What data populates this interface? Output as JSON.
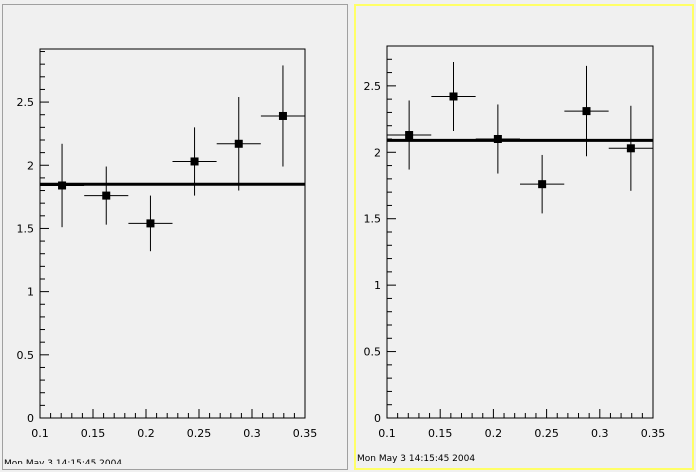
{
  "canvas": {
    "left_pad_timestamp": "Mon May 3 14:15:45 2004",
    "right_pad_timestamp": "Mon May  3 14:15:45 2004"
  },
  "chart_data": [
    {
      "type": "scatter",
      "title": "",
      "xlabel": "",
      "ylabel": "",
      "xlim": [
        0.1,
        0.35
      ],
      "ylim": [
        0,
        2.92
      ],
      "x_ticks": [
        "0.1",
        "0.15",
        "0.2",
        "0.25",
        "0.3",
        "0.35"
      ],
      "y_ticks": [
        "0",
        "0.5",
        "1",
        "1.5",
        "2",
        "2.5"
      ],
      "series": [
        {
          "marker": "square",
          "color": "#000000",
          "x": [
            0.1208,
            0.1625,
            0.2042,
            0.2458,
            0.2875,
            0.3292
          ],
          "y": [
            1.84,
            1.76,
            1.54,
            2.03,
            2.17,
            2.39
          ],
          "x_err": [
            0.0208,
            0.0208,
            0.0208,
            0.0208,
            0.0208,
            0.0208
          ],
          "y_err": [
            0.33,
            0.23,
            0.22,
            0.27,
            0.37,
            0.4
          ]
        }
      ],
      "fit_line": {
        "y": 1.85,
        "color": "#000000"
      }
    },
    {
      "type": "scatter",
      "title": "",
      "xlabel": "",
      "ylabel": "",
      "xlim": [
        0.1,
        0.35
      ],
      "ylim": [
        0,
        2.8
      ],
      "x_ticks": [
        "0.1",
        "0.15",
        "0.2",
        "0.25",
        "0.3",
        "0.35"
      ],
      "y_ticks": [
        "0",
        "0.5",
        "1",
        "1.5",
        "2",
        "2.5"
      ],
      "series": [
        {
          "marker": "square",
          "color": "#000000",
          "x": [
            0.1208,
            0.1625,
            0.2042,
            0.2458,
            0.2875,
            0.3292
          ],
          "y": [
            2.13,
            2.42,
            2.1,
            1.76,
            2.31,
            2.03
          ],
          "x_err": [
            0.0208,
            0.0208,
            0.0208,
            0.0208,
            0.0208,
            0.0208
          ],
          "y_err": [
            0.26,
            0.26,
            0.26,
            0.22,
            0.34,
            0.32
          ]
        }
      ],
      "fit_line": {
        "y": 2.09,
        "color": "#000000"
      }
    }
  ]
}
